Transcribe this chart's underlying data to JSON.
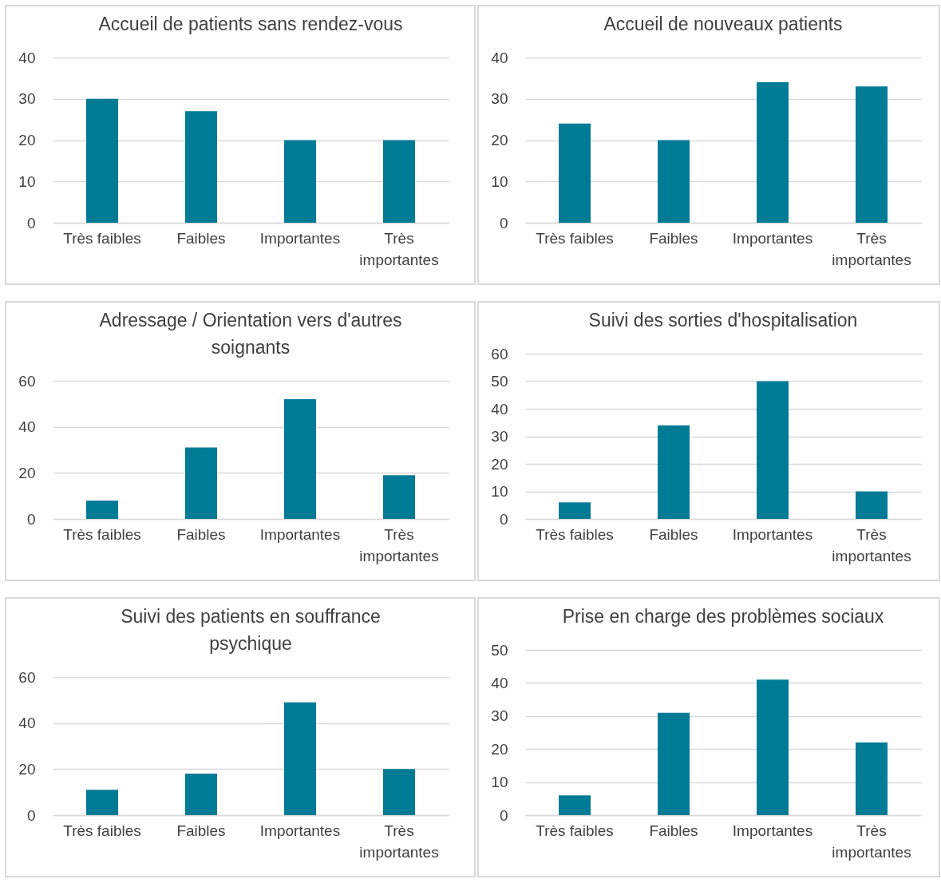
{
  "chart_data": [
    {
      "type": "bar",
      "title": "Accueil de patients sans rendez-vous",
      "categories": [
        "Très faibles",
        "Faibles",
        "Importantes",
        "Très importantes"
      ],
      "values": [
        30,
        27,
        20,
        20
      ],
      "color": "#007b96",
      "ylim": [
        0,
        40
      ],
      "yticks": [
        0,
        10,
        20,
        30,
        40
      ],
      "grid": "y"
    },
    {
      "type": "bar",
      "title": "Accueil de nouveaux patients",
      "categories": [
        "Très faibles",
        "Faibles",
        "Importantes",
        "Très importantes"
      ],
      "values": [
        24,
        20,
        34,
        33
      ],
      "color": "#007b96",
      "ylim": [
        0,
        40
      ],
      "yticks": [
        0,
        10,
        20,
        30,
        40
      ],
      "grid": "y"
    },
    {
      "type": "bar",
      "title": "Adressage / Orientation vers d'autres soignants",
      "categories": [
        "Très faibles",
        "Faibles",
        "Importantes",
        "Très importantes"
      ],
      "values": [
        8,
        31,
        52,
        19
      ],
      "color": "#007b96",
      "ylim": [
        0,
        60
      ],
      "yticks": [
        0,
        20,
        40,
        60
      ],
      "grid": "y"
    },
    {
      "type": "bar",
      "title": "Suivi des sorties d'hospitalisation",
      "categories": [
        "Très faibles",
        "Faibles",
        "Importantes",
        "Très importantes"
      ],
      "values": [
        6,
        34,
        50,
        10
      ],
      "color": "#007b96",
      "ylim": [
        0,
        60
      ],
      "yticks": [
        0,
        10,
        20,
        30,
        40,
        50,
        60
      ],
      "grid": "y"
    },
    {
      "type": "bar",
      "title": "Suivi des patients en souffrance psychique",
      "categories": [
        "Très faibles",
        "Faibles",
        "Importantes",
        "Très importantes"
      ],
      "values": [
        11,
        18,
        49,
        20
      ],
      "color": "#007b96",
      "ylim": [
        0,
        60
      ],
      "yticks": [
        0,
        20,
        40,
        60
      ],
      "grid": "y"
    },
    {
      "type": "bar",
      "title": "Prise en charge des problèmes sociaux",
      "categories": [
        "Très faibles",
        "Faibles",
        "Importantes",
        "Très importantes"
      ],
      "values": [
        6,
        31,
        41,
        22
      ],
      "color": "#007b96",
      "ylim": [
        0,
        50
      ],
      "yticks": [
        0,
        10,
        20,
        30,
        40,
        50
      ],
      "grid": "y"
    }
  ]
}
